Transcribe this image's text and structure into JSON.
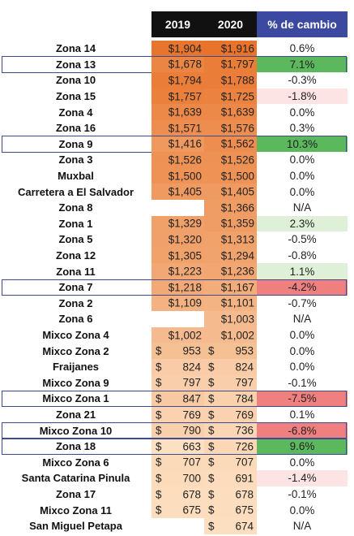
{
  "chart_data": {
    "type": "table",
    "columns": [
      "2019",
      "2020",
      "% de cambio"
    ],
    "rows": [
      {
        "zona": "Zona 14",
        "v2019": 1904,
        "v2020": 1916,
        "cambio": "0.6%",
        "highlight": false
      },
      {
        "zona": "Zona 13",
        "v2019": 1678,
        "v2020": 1797,
        "cambio": "7.1%",
        "highlight": true
      },
      {
        "zona": "Zona 10",
        "v2019": 1794,
        "v2020": 1788,
        "cambio": "-0.3%",
        "highlight": false
      },
      {
        "zona": "Zona 15",
        "v2019": 1757,
        "v2020": 1725,
        "cambio": "-1.8%",
        "highlight": false
      },
      {
        "zona": "Zona 4",
        "v2019": 1639,
        "v2020": 1639,
        "cambio": "0.0%",
        "highlight": false
      },
      {
        "zona": "Zona 16",
        "v2019": 1571,
        "v2020": 1576,
        "cambio": "0.3%",
        "highlight": false
      },
      {
        "zona": "Zona 9",
        "v2019": 1416,
        "v2020": 1562,
        "cambio": "10.3%",
        "highlight": true
      },
      {
        "zona": "Zona 3",
        "v2019": 1526,
        "v2020": 1526,
        "cambio": "0.0%",
        "highlight": false
      },
      {
        "zona": "Muxbal",
        "v2019": 1500,
        "v2020": 1500,
        "cambio": "0.0%",
        "highlight": false
      },
      {
        "zona": "Carretera a El Salvador",
        "v2019": 1405,
        "v2020": 1405,
        "cambio": "0.0%",
        "highlight": false
      },
      {
        "zona": "Zona 8",
        "v2019": null,
        "v2020": 1366,
        "cambio": "N/A",
        "highlight": false
      },
      {
        "zona": "Zona 1",
        "v2019": 1329,
        "v2020": 1359,
        "cambio": "2.3%",
        "highlight": false
      },
      {
        "zona": "Zona 5",
        "v2019": 1320,
        "v2020": 1313,
        "cambio": "-0.5%",
        "highlight": false
      },
      {
        "zona": "Zona 12",
        "v2019": 1305,
        "v2020": 1294,
        "cambio": "-0.8%",
        "highlight": false
      },
      {
        "zona": "Zona 11",
        "v2019": 1223,
        "v2020": 1236,
        "cambio": "1.1%",
        "highlight": false
      },
      {
        "zona": "Zona 7",
        "v2019": 1218,
        "v2020": 1167,
        "cambio": "-4.2%",
        "highlight": true
      },
      {
        "zona": "Zona 2",
        "v2019": 1109,
        "v2020": 1101,
        "cambio": "-0.7%",
        "highlight": false
      },
      {
        "zona": "Zona 6",
        "v2019": null,
        "v2020": 1003,
        "cambio": "N/A",
        "highlight": false
      },
      {
        "zona": "Mixco Zona 4",
        "v2019": 1002,
        "v2020": 1002,
        "cambio": "0.0%",
        "highlight": false
      },
      {
        "zona": "Mixco Zona 2",
        "v2019": 953,
        "v2020": 953,
        "cambio": "0.0%",
        "highlight": false
      },
      {
        "zona": "Fraijanes",
        "v2019": 824,
        "v2020": 824,
        "cambio": "0.0%",
        "highlight": false
      },
      {
        "zona": "Mixco Zona 9",
        "v2019": 797,
        "v2020": 797,
        "cambio": "-0.1%",
        "highlight": false
      },
      {
        "zona": "Mixco Zona 1",
        "v2019": 847,
        "v2020": 784,
        "cambio": "-7.5%",
        "highlight": true
      },
      {
        "zona": "Zona 21",
        "v2019": 769,
        "v2020": 769,
        "cambio": "0.1%",
        "highlight": false
      },
      {
        "zona": "Mixco Zona 10",
        "v2019": 790,
        "v2020": 736,
        "cambio": "-6.8%",
        "highlight": true
      },
      {
        "zona": "Zona 18",
        "v2019": 663,
        "v2020": 726,
        "cambio": "9.6%",
        "highlight": true
      },
      {
        "zona": "Mixco Zona 6",
        "v2019": 707,
        "v2020": 707,
        "cambio": "0.0%",
        "highlight": false
      },
      {
        "zona": "Santa Catarina Pinula",
        "v2019": 700,
        "v2020": 691,
        "cambio": "-1.4%",
        "highlight": false
      },
      {
        "zona": "Zona 17",
        "v2019": 678,
        "v2020": 678,
        "cambio": "-0.1%",
        "highlight": false
      },
      {
        "zona": "Mixco Zona 11",
        "v2019": 675,
        "v2020": 675,
        "cambio": "0.0%",
        "highlight": false
      },
      {
        "zona": "San Miguel Petapa",
        "v2019": null,
        "v2020": 674,
        "cambio": "N/A",
        "highlight": false
      }
    ],
    "colors": {
      "header_dark": "#111111",
      "header_accent": "#3b4aa0",
      "gradient_high": "#e8742c",
      "gradient_low": "#fde3c6",
      "positive_strong": "#5cb85c",
      "positive_light": "#dff0d8",
      "negative_strong": "#f07f7f",
      "negative_light": "#fde4e4",
      "highlight_border": "#3d4a92"
    }
  }
}
